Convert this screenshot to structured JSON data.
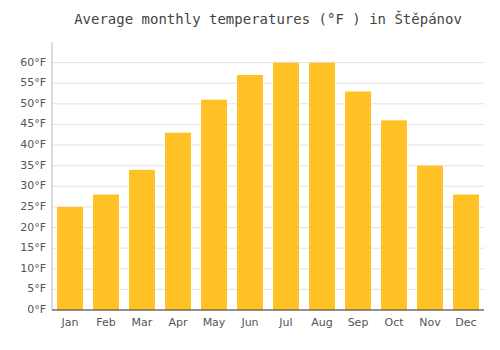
{
  "chart_data": {
    "type": "bar",
    "title": "Average monthly temperatures (°F ) in Štěpánov",
    "categories": [
      "Jan",
      "Feb",
      "Mar",
      "Apr",
      "May",
      "Jun",
      "Jul",
      "Aug",
      "Sep",
      "Oct",
      "Nov",
      "Dec"
    ],
    "values": [
      25,
      28,
      34,
      43,
      51,
      57,
      60,
      60,
      53,
      46,
      35,
      28
    ],
    "color": "#FFC125",
    "ylim": [
      0,
      65
    ],
    "yticks": [
      {
        "value": 0,
        "label": "0°F"
      },
      {
        "value": 5,
        "label": "5°F"
      },
      {
        "value": 10,
        "label": "10°F"
      },
      {
        "value": 15,
        "label": "15°F"
      },
      {
        "value": 20,
        "label": "20°F"
      },
      {
        "value": 25,
        "label": "25°F"
      },
      {
        "value": 30,
        "label": "30°F"
      },
      {
        "value": 35,
        "label": "35°F"
      },
      {
        "value": 40,
        "label": "40°F"
      },
      {
        "value": 45,
        "label": "45°F"
      },
      {
        "value": 50,
        "label": "50°F"
      },
      {
        "value": 55,
        "label": "55°F"
      },
      {
        "value": 60,
        "label": "60°F"
      }
    ],
    "grid": true
  }
}
